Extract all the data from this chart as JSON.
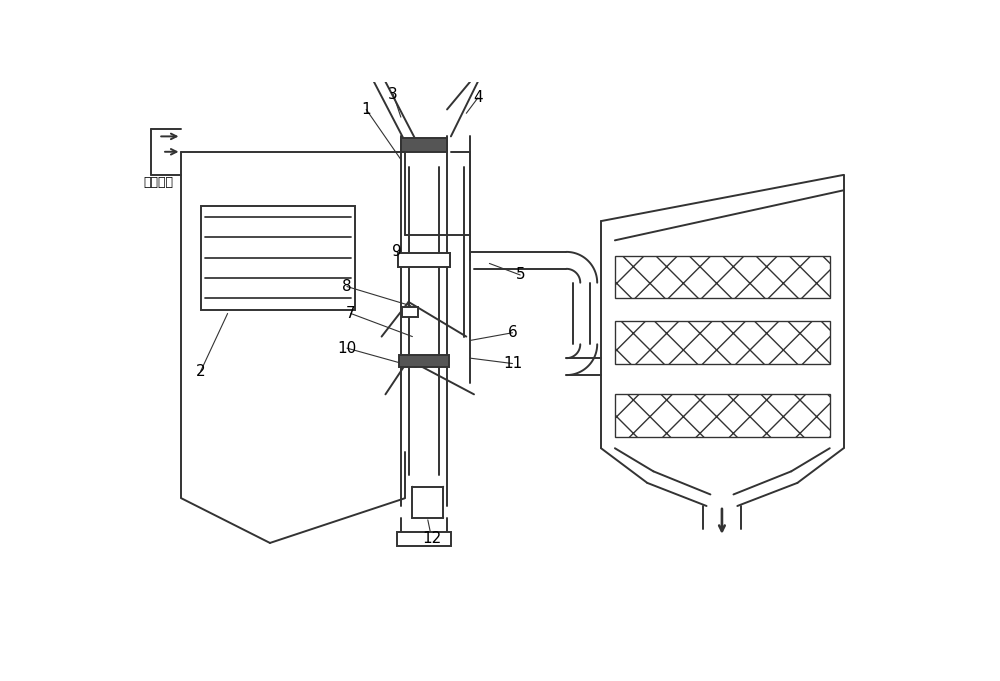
{
  "bg_color": "#ffffff",
  "line_color": "#333333",
  "lw": 1.4,
  "figsize": [
    10.0,
    6.81
  ],
  "dpi": 100,
  "label_fs": 11,
  "chinese_text": "锅炉烟气"
}
